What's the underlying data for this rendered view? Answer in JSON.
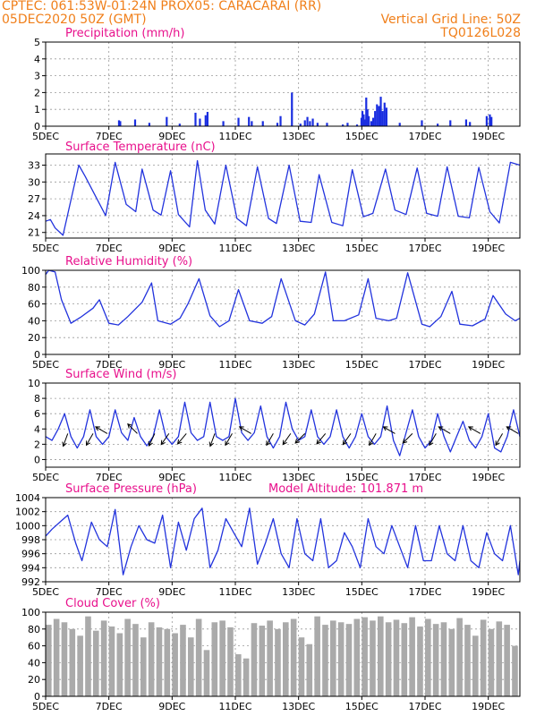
{
  "header": {
    "line1_left": "CPTEC:  061:53W-01:24N  PROX05: CARACARAI (RR)",
    "line2_left": "05DEC2020 50Z (GMT)",
    "line2_right": "Vertical Grid Line: 50Z",
    "line3_right": "TQ0126L028"
  },
  "colors": {
    "header": "#f07f1a",
    "title": "#e8108c",
    "line": "#2233dd",
    "bar": "#1a2ee0",
    "cloud": "#aaaaaa",
    "arrow": "#000000",
    "grid": "#999999"
  },
  "chart_data": [
    {
      "type": "bar",
      "title": "Precipitation (mm/h)",
      "ylim": [
        0,
        5
      ],
      "yticks": [
        0,
        1,
        2,
        3,
        4,
        5
      ],
      "xlim": [
        0,
        15
      ],
      "xticks": [
        {
          "v": 0,
          "l": "5DEC"
        },
        {
          "v": 2,
          "l": "7DEC"
        },
        {
          "v": 4,
          "l": "9DEC"
        },
        {
          "v": 6,
          "l": "11DEC"
        },
        {
          "v": 8,
          "l": "13DEC"
        },
        {
          "v": 10,
          "l": "15DEC"
        },
        {
          "v": 12,
          "l": "17DEC"
        },
        {
          "v": 14,
          "l": "19DEC"
        }
      ],
      "grid": true,
      "x": [
        2.32,
        2.36,
        2.83,
        3.28,
        3.83,
        4.24,
        4.74,
        4.88,
        5.06,
        5.12,
        5.62,
        6.1,
        6.43,
        6.52,
        6.87,
        7.33,
        7.43,
        7.79,
        8.06,
        8.2,
        8.28,
        8.36,
        8.45,
        8.6,
        8.9,
        9.4,
        9.55,
        9.85,
        9.99,
        10.02,
        10.06,
        10.1,
        10.14,
        10.18,
        10.22,
        10.3,
        10.36,
        10.42,
        10.48,
        10.54,
        10.6,
        10.66,
        10.72,
        10.78,
        11.2,
        11.9,
        12.4,
        12.8,
        13.3,
        13.42,
        13.95,
        14.05,
        14.1
      ],
      "values": [
        0.35,
        0.3,
        0.4,
        0.2,
        0.55,
        0.15,
        0.8,
        0.45,
        0.65,
        0.85,
        0.3,
        0.5,
        0.55,
        0.3,
        0.3,
        0.2,
        0.6,
        2.0,
        0.15,
        0.35,
        0.55,
        0.3,
        0.45,
        0.2,
        0.2,
        0.1,
        0.2,
        0.1,
        0.5,
        0.9,
        0.7,
        0.4,
        1.7,
        1.0,
        0.6,
        0.3,
        0.5,
        0.9,
        1.3,
        1.2,
        1.75,
        0.9,
        1.4,
        1.1,
        0.2,
        0.35,
        0.15,
        0.35,
        0.4,
        0.25,
        0.6,
        0.7,
        0.55
      ],
      "bar_color": "#1a2ee0"
    },
    {
      "type": "line",
      "title": "Surface Temperature (nC)",
      "ylim": [
        20,
        35
      ],
      "yticks": [
        21,
        24,
        27,
        30,
        33
      ],
      "xlim": [
        0,
        15
      ],
      "xticks": [
        {
          "v": 0,
          "l": "5DEC"
        },
        {
          "v": 2,
          "l": "7DEC"
        },
        {
          "v": 4,
          "l": "9DEC"
        },
        {
          "v": 6,
          "l": "11DEC"
        },
        {
          "v": 8,
          "l": "13DEC"
        },
        {
          "v": 10,
          "l": "15DEC"
        },
        {
          "v": 12,
          "l": "17DEC"
        },
        {
          "v": 14,
          "l": "19DEC"
        }
      ],
      "grid": true,
      "x": [
        0,
        0.15,
        0.3,
        0.55,
        0.85,
        1.05,
        1.25,
        1.9,
        2.2,
        2.55,
        2.85,
        3.05,
        3.4,
        3.65,
        3.95,
        4.2,
        4.55,
        4.8,
        5.05,
        5.35,
        5.7,
        6.05,
        6.35,
        6.7,
        7.05,
        7.3,
        7.7,
        8.05,
        8.4,
        8.65,
        9.05,
        9.4,
        9.7,
        10.05,
        10.35,
        10.75,
        11.05,
        11.4,
        11.75,
        12.05,
        12.4,
        12.7,
        13.05,
        13.4,
        13.7,
        14.05,
        14.35,
        14.7,
        15
      ],
      "values": [
        23,
        23.3,
        21.8,
        20.5,
        28,
        33,
        31,
        24,
        33.5,
        26,
        24.7,
        32.3,
        25,
        24.1,
        32,
        24.2,
        22,
        33.8,
        25,
        22.5,
        33,
        23.5,
        22.2,
        32.7,
        23.5,
        22.6,
        33,
        23,
        22.8,
        31.3,
        22.8,
        22.2,
        32.2,
        23.8,
        24.4,
        32.3,
        25,
        24.2,
        32.5,
        24.4,
        23.9,
        32.7,
        23.9,
        23.6,
        32.6,
        24.7,
        22.7,
        33.5,
        33
      ]
    },
    {
      "type": "line",
      "title": "Relative Humidity (%)",
      "ylim": [
        0,
        100
      ],
      "yticks": [
        0,
        20,
        40,
        60,
        80,
        100
      ],
      "xlim": [
        0,
        15
      ],
      "xticks": [
        {
          "v": 0,
          "l": "5DEC"
        },
        {
          "v": 2,
          "l": "7DEC"
        },
        {
          "v": 4,
          "l": "9DEC"
        },
        {
          "v": 6,
          "l": "11DEC"
        },
        {
          "v": 8,
          "l": "13DEC"
        },
        {
          "v": 10,
          "l": "15DEC"
        },
        {
          "v": 12,
          "l": "17DEC"
        },
        {
          "v": 14,
          "l": "19DEC"
        }
      ],
      "grid": true,
      "x": [
        0,
        0.1,
        0.3,
        0.5,
        0.8,
        1.1,
        1.5,
        1.7,
        2.0,
        2.3,
        2.6,
        3.05,
        3.35,
        3.55,
        3.95,
        4.25,
        4.5,
        4.85,
        5.2,
        5.5,
        5.8,
        6.1,
        6.45,
        6.85,
        7.15,
        7.45,
        7.9,
        8.2,
        8.5,
        8.85,
        9.1,
        9.45,
        9.9,
        10.2,
        10.45,
        10.85,
        11.1,
        11.45,
        11.9,
        12.15,
        12.5,
        12.85,
        13.1,
        13.5,
        13.9,
        14.15,
        14.55,
        14.85,
        15
      ],
      "values": [
        95,
        100,
        98,
        65,
        37,
        44,
        55,
        65,
        37,
        35,
        45,
        62,
        85,
        40,
        36,
        43,
        60,
        90,
        46,
        33,
        40,
        77,
        40,
        37,
        45,
        90,
        40,
        35,
        48,
        98,
        40,
        40,
        47,
        90,
        43,
        40,
        43,
        97,
        36,
        33,
        45,
        75,
        36,
        34,
        42,
        70,
        48,
        40,
        43
      ]
    },
    {
      "type": "line",
      "title": "Surface Wind (m/s)",
      "ylim": [
        -1,
        10
      ],
      "yticks": [
        0,
        2,
        4,
        6,
        8,
        10
      ],
      "xlim": [
        0,
        15
      ],
      "xticks": [
        {
          "v": 0,
          "l": "5DEC"
        },
        {
          "v": 2,
          "l": "7DEC"
        },
        {
          "v": 4,
          "l": "9DEC"
        },
        {
          "v": 6,
          "l": "11DEC"
        },
        {
          "v": 8,
          "l": "13DEC"
        },
        {
          "v": 10,
          "l": "15DEC"
        },
        {
          "v": 12,
          "l": "17DEC"
        },
        {
          "v": 14,
          "l": "19DEC"
        }
      ],
      "grid": true,
      "x": [
        0,
        0.2,
        0.4,
        0.6,
        0.8,
        1.0,
        1.2,
        1.4,
        1.6,
        1.8,
        2.0,
        2.2,
        2.4,
        2.6,
        2.8,
        3.0,
        3.2,
        3.4,
        3.6,
        3.8,
        4.0,
        4.2,
        4.4,
        4.6,
        4.8,
        5.0,
        5.2,
        5.4,
        5.6,
        5.8,
        6.0,
        6.2,
        6.4,
        6.6,
        6.8,
        7.0,
        7.2,
        7.4,
        7.6,
        7.8,
        8.0,
        8.2,
        8.4,
        8.6,
        8.8,
        9.0,
        9.2,
        9.4,
        9.6,
        9.8,
        10.0,
        10.2,
        10.4,
        10.6,
        10.8,
        11.0,
        11.2,
        11.4,
        11.6,
        11.8,
        12.0,
        12.2,
        12.4,
        12.6,
        12.8,
        13.0,
        13.2,
        13.4,
        13.6,
        13.8,
        14.0,
        14.2,
        14.4,
        14.6,
        14.8,
        15
      ],
      "values": [
        3,
        2.5,
        4,
        6,
        3,
        1.5,
        3,
        6.5,
        3,
        2,
        3,
        6.5,
        3.5,
        2.5,
        5.5,
        3,
        1.8,
        3,
        6.5,
        3,
        2,
        3,
        7.5,
        3.5,
        2.5,
        3,
        7.5,
        3,
        2.5,
        3,
        8,
        3.5,
        2.5,
        3.5,
        7,
        3,
        1.5,
        3,
        7.5,
        4,
        2.5,
        3,
        6.5,
        3,
        2,
        3,
        6.5,
        3,
        1.5,
        3,
        6,
        3,
        2,
        3,
        7,
        2.5,
        0.5,
        3.5,
        6.5,
        3,
        1.5,
        2.5,
        6,
        3,
        1,
        3,
        5,
        2.5,
        1.5,
        3,
        6,
        1.5,
        1,
        3,
        6.5,
        3
      ],
      "arrows": [
        {
          "x": 0.7,
          "dir": 200
        },
        {
          "x": 1.5,
          "dir": 210
        },
        {
          "x": 1.95,
          "dir": 300
        },
        {
          "x": 2.9,
          "dir": 315
        },
        {
          "x": 3.45,
          "dir": 205
        },
        {
          "x": 3.9,
          "dir": 215
        },
        {
          "x": 4.45,
          "dir": 220
        },
        {
          "x": 5.35,
          "dir": 200
        },
        {
          "x": 5.9,
          "dir": 210
        },
        {
          "x": 6.5,
          "dir": 300
        },
        {
          "x": 7.2,
          "dir": 210
        },
        {
          "x": 7.75,
          "dir": 215
        },
        {
          "x": 8.2,
          "dir": 225
        },
        {
          "x": 8.85,
          "dir": 220
        },
        {
          "x": 9.65,
          "dir": 215
        },
        {
          "x": 10.45,
          "dir": 210
        },
        {
          "x": 11.05,
          "dir": 300
        },
        {
          "x": 11.6,
          "dir": 225
        },
        {
          "x": 12.35,
          "dir": 210
        },
        {
          "x": 12.8,
          "dir": 300
        },
        {
          "x": 13.75,
          "dir": 300
        },
        {
          "x": 14.45,
          "dir": 210
        },
        {
          "x": 14.95,
          "dir": 300
        }
      ]
    },
    {
      "type": "line",
      "title": "Surface Pressure (hPa)",
      "annotation": "Model Altitude: 101.871  m",
      "ylim": [
        992,
        1004
      ],
      "yticks": [
        992,
        994,
        996,
        998,
        1000,
        1002,
        1004
      ],
      "xlim": [
        0,
        15
      ],
      "xticks": [
        {
          "v": 0,
          "l": "5DEC"
        },
        {
          "v": 2,
          "l": "7DEC"
        },
        {
          "v": 4,
          "l": "9DEC"
        },
        {
          "v": 6,
          "l": "11DEC"
        },
        {
          "v": 8,
          "l": "13DEC"
        },
        {
          "v": 10,
          "l": "15DEC"
        },
        {
          "v": 12,
          "l": "17DEC"
        },
        {
          "v": 14,
          "l": "19DEC"
        }
      ],
      "grid": true,
      "x": [
        0,
        0.2,
        0.45,
        0.7,
        0.95,
        1.15,
        1.45,
        1.7,
        1.95,
        2.2,
        2.45,
        2.7,
        2.95,
        3.2,
        3.45,
        3.7,
        3.95,
        4.2,
        4.45,
        4.7,
        4.95,
        5.2,
        5.45,
        5.7,
        5.95,
        6.2,
        6.45,
        6.7,
        6.95,
        7.2,
        7.45,
        7.7,
        7.95,
        8.2,
        8.45,
        8.7,
        8.95,
        9.2,
        9.45,
        9.7,
        9.95,
        10.2,
        10.45,
        10.7,
        10.95,
        11.2,
        11.45,
        11.7,
        11.95,
        12.2,
        12.45,
        12.7,
        12.95,
        13.2,
        13.45,
        13.7,
        13.95,
        14.2,
        14.45,
        14.7,
        14.95,
        15
      ],
      "values": [
        998.5,
        999.5,
        1000.5,
        1001.5,
        997.5,
        995,
        1000.5,
        998,
        997,
        1002.3,
        993,
        997,
        1000,
        998,
        997.5,
        1001.5,
        994,
        1000.5,
        996.5,
        1001,
        1002.5,
        994,
        996.5,
        1001,
        999,
        997,
        1002.5,
        994.5,
        997.5,
        1001,
        996,
        994,
        1001,
        996,
        995,
        1001,
        994,
        995,
        999,
        997,
        994,
        1001,
        997,
        996,
        1000,
        997,
        994,
        1000,
        995,
        995,
        1000,
        996,
        995,
        1000,
        995,
        994,
        999,
        996,
        995,
        1000,
        993,
        995
      ]
    },
    {
      "type": "bar",
      "title": "Cloud Cover (%)",
      "ylim": [
        0,
        100
      ],
      "yticks": [
        0,
        20,
        40,
        60,
        80,
        100
      ],
      "xlim": [
        0,
        15
      ],
      "xticks": [
        {
          "v": 0,
          "l": "5DEC"
        },
        {
          "v": 2,
          "l": "7DEC"
        },
        {
          "v": 4,
          "l": "9DEC"
        },
        {
          "v": 6,
          "l": "11DEC"
        },
        {
          "v": 8,
          "l": "13DEC"
        },
        {
          "v": 10,
          "l": "15DEC"
        },
        {
          "v": 12,
          "l": "17DEC"
        },
        {
          "v": 14,
          "l": "19DEC"
        }
      ],
      "grid": true,
      "x": [
        0,
        0.25,
        0.5,
        0.75,
        1.0,
        1.25,
        1.5,
        1.75,
        2.0,
        2.25,
        2.5,
        2.75,
        3.0,
        3.25,
        3.5,
        3.75,
        4.0,
        4.25,
        4.5,
        4.75,
        5.0,
        5.25,
        5.5,
        5.75,
        6.0,
        6.25,
        6.5,
        6.75,
        7.0,
        7.25,
        7.5,
        7.75,
        8.0,
        8.25,
        8.5,
        8.75,
        9.0,
        9.25,
        9.5,
        9.75,
        10.0,
        10.25,
        10.5,
        10.75,
        11.0,
        11.25,
        11.5,
        11.75,
        12.0,
        12.25,
        12.5,
        12.75,
        13.0,
        13.25,
        13.5,
        13.75,
        14.0,
        14.25,
        14.5,
        14.75
      ],
      "values": [
        85,
        92,
        88,
        80,
        72,
        95,
        78,
        90,
        83,
        75,
        92,
        86,
        70,
        88,
        82,
        80,
        75,
        85,
        70,
        92,
        55,
        88,
        90,
        82,
        50,
        45,
        87,
        84,
        90,
        80,
        88,
        92,
        70,
        62,
        95,
        85,
        90,
        88,
        86,
        92,
        94,
        90,
        95,
        88,
        91,
        87,
        94,
        83,
        92,
        86,
        88,
        80,
        93,
        85,
        72,
        91,
        80,
        89,
        85,
        60
      ],
      "bar_color": "#aaaaaa"
    }
  ]
}
